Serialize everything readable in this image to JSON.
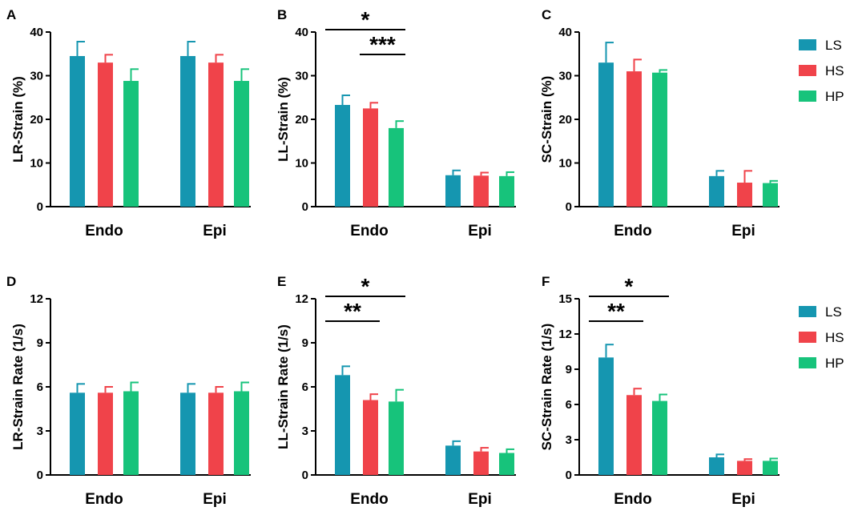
{
  "colors": {
    "LS": "#1596b0",
    "HS": "#f0434a",
    "HP": "#17c37b",
    "axis": "#000000"
  },
  "legend": [
    {
      "key": "LS",
      "label": "LS"
    },
    {
      "key": "HS",
      "label": "HS"
    },
    {
      "key": "HP",
      "label": "HP"
    }
  ],
  "chart_data": [
    {
      "panel": "A",
      "type": "bar",
      "ylabel": "LR-Strain (%)",
      "categories": [
        "Endo",
        "Epi"
      ],
      "ylim": [
        0,
        40
      ],
      "yticks": [
        "0",
        "10",
        "20",
        "30",
        "40"
      ],
      "series": [
        {
          "name": "LS",
          "values": [
            34.5,
            34.5
          ],
          "errors": [
            3.3,
            3.3
          ]
        },
        {
          "name": "HS",
          "values": [
            33.0,
            33.0
          ],
          "errors": [
            1.8,
            1.8
          ]
        },
        {
          "name": "HP",
          "values": [
            28.8,
            28.8
          ],
          "errors": [
            2.7,
            2.7
          ]
        }
      ],
      "significance": []
    },
    {
      "panel": "B",
      "type": "bar",
      "ylabel": "LL-Strain (%)",
      "categories": [
        "Endo",
        "Epi"
      ],
      "ylim": [
        0,
        40
      ],
      "yticks": [
        "0",
        "10",
        "20",
        "30",
        "40"
      ],
      "series": [
        {
          "name": "LS",
          "values": [
            23.3,
            7.2
          ],
          "errors": [
            2.2,
            1.1
          ]
        },
        {
          "name": "HS",
          "values": [
            22.5,
            7.1
          ],
          "errors": [
            1.3,
            0.7
          ]
        },
        {
          "name": "HP",
          "values": [
            18.0,
            7.0
          ],
          "errors": [
            1.6,
            0.9
          ]
        }
      ],
      "significance": [
        {
          "label": "*",
          "from": "LS",
          "to": "HP",
          "level": 0
        },
        {
          "label": "***",
          "from": "HS",
          "to": "HP",
          "level": 1
        }
      ]
    },
    {
      "panel": "C",
      "type": "bar",
      "ylabel": "SC-Strain (%)",
      "categories": [
        "Endo",
        "Epi"
      ],
      "ylim": [
        0,
        40
      ],
      "yticks": [
        "0",
        "10",
        "20",
        "30",
        "40"
      ],
      "series": [
        {
          "name": "LS",
          "values": [
            33.0,
            7.0
          ],
          "errors": [
            4.6,
            1.2
          ]
        },
        {
          "name": "HS",
          "values": [
            31.0,
            5.5
          ],
          "errors": [
            2.7,
            2.7
          ]
        },
        {
          "name": "HP",
          "values": [
            30.7,
            5.4
          ],
          "errors": [
            0.6,
            0.5
          ]
        }
      ],
      "significance": []
    },
    {
      "panel": "D",
      "type": "bar",
      "ylabel": "LR-Strain Rate (1/s)",
      "categories": [
        "Endo",
        "Epi"
      ],
      "ylim": [
        0,
        12
      ],
      "yticks": [
        "0",
        "3",
        "6",
        "9",
        "12"
      ],
      "series": [
        {
          "name": "LS",
          "values": [
            5.6,
            5.6
          ],
          "errors": [
            0.6,
            0.6
          ]
        },
        {
          "name": "HS",
          "values": [
            5.6,
            5.6
          ],
          "errors": [
            0.4,
            0.4
          ]
        },
        {
          "name": "HP",
          "values": [
            5.7,
            5.7
          ],
          "errors": [
            0.6,
            0.6
          ]
        }
      ],
      "significance": []
    },
    {
      "panel": "E",
      "type": "bar",
      "ylabel": "LL-Strain Rate (1/s)",
      "categories": [
        "Endo",
        "Epi"
      ],
      "ylim": [
        0,
        12
      ],
      "yticks": [
        "0",
        "3",
        "6",
        "9",
        "12"
      ],
      "series": [
        {
          "name": "LS",
          "values": [
            6.8,
            2.0
          ],
          "errors": [
            0.6,
            0.3
          ]
        },
        {
          "name": "HS",
          "values": [
            5.1,
            1.6
          ],
          "errors": [
            0.4,
            0.25
          ]
        },
        {
          "name": "HP",
          "values": [
            5.0,
            1.5
          ],
          "errors": [
            0.8,
            0.25
          ]
        }
      ],
      "significance": [
        {
          "label": "*",
          "from": "LS",
          "to": "HP",
          "level": 0
        },
        {
          "label": "**",
          "from": "LS",
          "to": "HS",
          "level": 1
        }
      ]
    },
    {
      "panel": "F",
      "type": "bar",
      "ylabel": "SC-Strain Rate (1/s)",
      "categories": [
        "Endo",
        "Epi"
      ],
      "ylim": [
        0,
        15
      ],
      "yticks": [
        "0",
        "3",
        "6",
        "9",
        "12",
        "15"
      ],
      "series": [
        {
          "name": "LS",
          "values": [
            10.0,
            1.5
          ],
          "errors": [
            1.1,
            0.25
          ]
        },
        {
          "name": "HS",
          "values": [
            6.8,
            1.2
          ],
          "errors": [
            0.55,
            0.15
          ]
        },
        {
          "name": "HP",
          "values": [
            6.3,
            1.2
          ],
          "errors": [
            0.55,
            0.2
          ]
        }
      ],
      "significance": [
        {
          "label": "*",
          "from": "LS",
          "to": "HP",
          "level": 0
        },
        {
          "label": "**",
          "from": "LS",
          "to": "HS",
          "level": 1
        }
      ]
    }
  ]
}
